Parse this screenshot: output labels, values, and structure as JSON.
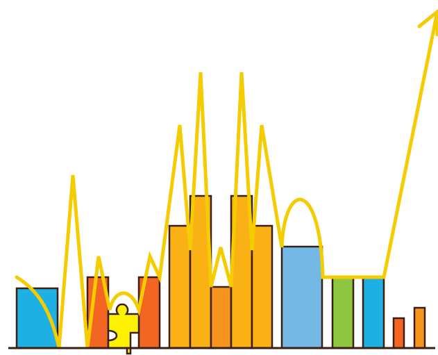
{
  "illustration": {
    "subject": "growth-bar-graphic",
    "icons": [
      "puzzle-piece-icon",
      "trend-arrow-icon"
    ]
  },
  "colors": {
    "background": "#ffffff",
    "outline": "#3b1f12",
    "trend_line": "#f5cc00",
    "blue": "#1fb0e3",
    "light_blue": "#74b9e6",
    "orange_red": "#f26522",
    "amber": "#f9b116",
    "orange": "#f7941d",
    "green": "#8dc63f",
    "puzzle_yellow": "#fff200"
  }
}
